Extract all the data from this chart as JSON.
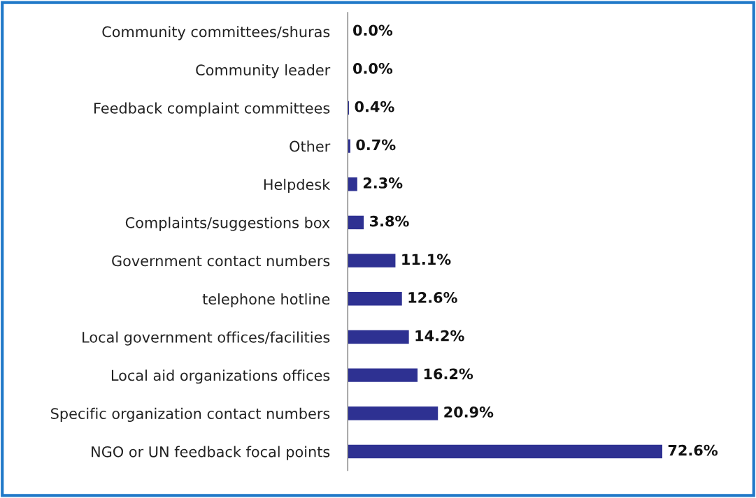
{
  "chart_data": {
    "type": "bar",
    "orientation": "horizontal",
    "categories": [
      "Community committees/shuras",
      "Community leader",
      "Feedback complaint committees",
      "Other",
      "Helpdesk",
      "Complaints/suggestions box",
      "Government contact numbers",
      "telephone hotline",
      "Local government offices/facilities",
      "Local aid organizations offices",
      "Specific organization contact numbers",
      "NGO or UN feedback focal points"
    ],
    "values": [
      0.0,
      0.0,
      0.4,
      0.7,
      2.3,
      3.8,
      11.1,
      12.6,
      14.2,
      16.2,
      20.9,
      72.6
    ],
    "value_labels": [
      "0.0%",
      "0.0%",
      "0.4%",
      "0.7%",
      "2.3%",
      "3.8%",
      "11.1%",
      "12.6%",
      "14.2%",
      "16.2%",
      "20.9%",
      "72.6%"
    ],
    "color": "#2e3192",
    "grid": false,
    "legend": false
  }
}
